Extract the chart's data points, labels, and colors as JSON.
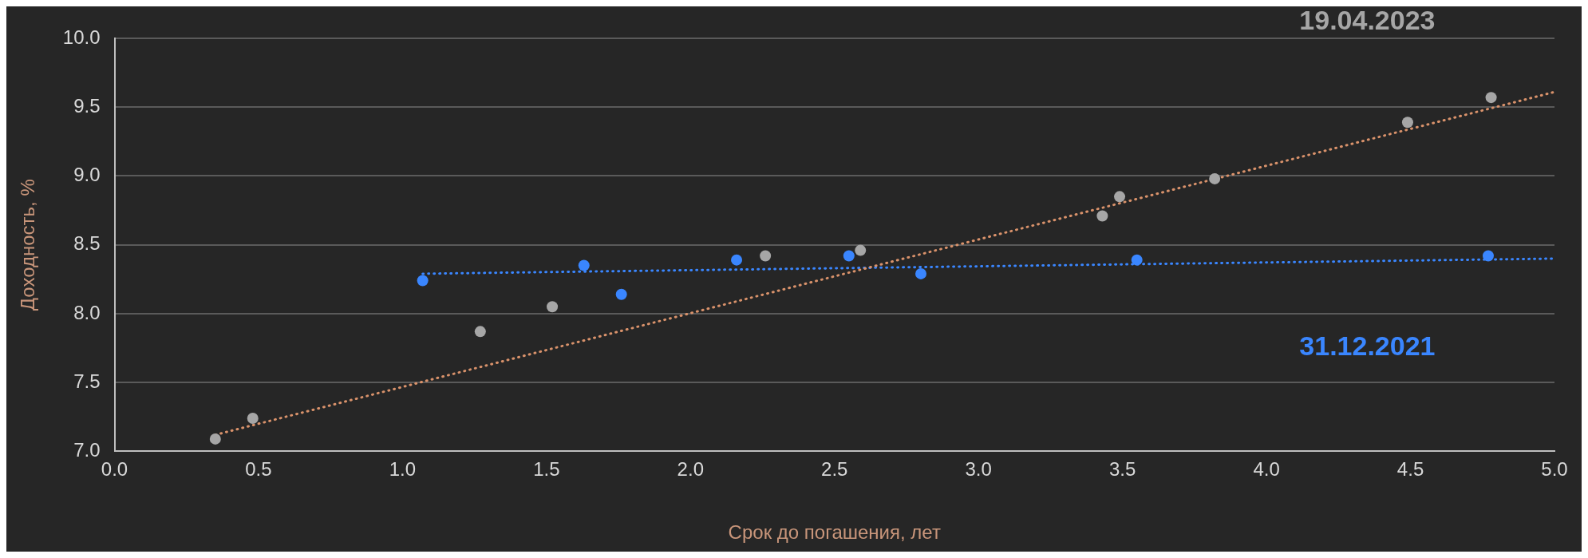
{
  "chart_data": {
    "type": "scatter",
    "xlabel": "Срок до погашения, лет",
    "ylabel": "Доходность, %",
    "xlim": [
      0,
      5
    ],
    "ylim": [
      7,
      10
    ],
    "xticks": [
      {
        "value": 0,
        "label": "0.0"
      },
      {
        "value": 0.5,
        "label": "0.5"
      },
      {
        "value": 1,
        "label": "1.0"
      },
      {
        "value": 1.5,
        "label": "1.5"
      },
      {
        "value": 2,
        "label": "2.0"
      },
      {
        "value": 2.5,
        "label": "2.5"
      },
      {
        "value": 3,
        "label": "3.0"
      },
      {
        "value": 3.5,
        "label": "3.5"
      },
      {
        "value": 4,
        "label": "4.0"
      },
      {
        "value": 4.5,
        "label": "4.5"
      },
      {
        "value": 5,
        "label": "5.0"
      }
    ],
    "yticks": [
      {
        "value": 7,
        "label": "7.0"
      },
      {
        "value": 7.5,
        "label": "7.5"
      },
      {
        "value": 8,
        "label": "8.0"
      },
      {
        "value": 8.5,
        "label": "8.5"
      },
      {
        "value": 9,
        "label": "9.0"
      },
      {
        "value": 9.5,
        "label": "9.5"
      },
      {
        "value": 10,
        "label": "10.0"
      }
    ],
    "grid": "y",
    "marker": "circle",
    "series": [
      {
        "name": "19.04.2023",
        "color": "#a6a6a6",
        "x": [
          0.35,
          0.48,
          1.27,
          1.52,
          2.26,
          2.59,
          3.43,
          3.49,
          3.82,
          4.49,
          4.78
        ],
        "values": [
          7.09,
          7.24,
          7.87,
          8.05,
          8.42,
          8.46,
          8.71,
          8.85,
          8.98,
          9.39,
          9.57
        ]
      },
      {
        "name": "31.12.2021",
        "color": "#3a86ff",
        "x": [
          1.07,
          1.63,
          1.76,
          2.16,
          2.55,
          2.8,
          3.55,
          4.77
        ],
        "values": [
          8.24,
          8.35,
          8.14,
          8.39,
          8.42,
          8.29,
          8.39,
          8.42
        ]
      },
      {
        "type": "line",
        "color": "#d9926b",
        "x": [
          0.35,
          5
        ],
        "values": [
          7.12,
          9.61
        ],
        "line_style": "dotted",
        "marker": "none"
      },
      {
        "type": "line",
        "color": "#3a86ff",
        "x": [
          1.07,
          5
        ],
        "values": [
          8.29,
          8.4
        ],
        "line_style": "dotted",
        "marker": "none"
      }
    ]
  }
}
